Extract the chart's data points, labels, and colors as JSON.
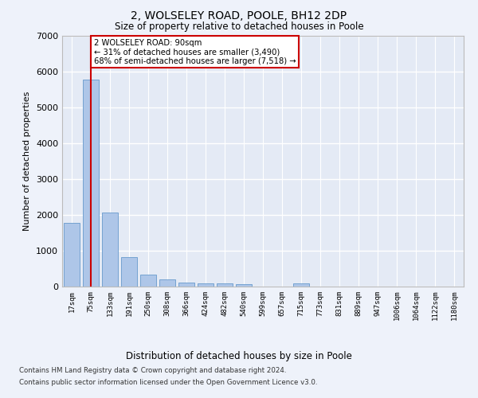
{
  "title1": "2, WOLSELEY ROAD, POOLE, BH12 2DP",
  "title2": "Size of property relative to detached houses in Poole",
  "xlabel": "Distribution of detached houses by size in Poole",
  "ylabel": "Number of detached properties",
  "categories": [
    "17sqm",
    "75sqm",
    "133sqm",
    "191sqm",
    "250sqm",
    "308sqm",
    "366sqm",
    "424sqm",
    "482sqm",
    "540sqm",
    "599sqm",
    "657sqm",
    "715sqm",
    "773sqm",
    "831sqm",
    "889sqm",
    "947sqm",
    "1006sqm",
    "1064sqm",
    "1122sqm",
    "1180sqm"
  ],
  "values": [
    1780,
    5780,
    2060,
    820,
    340,
    190,
    115,
    100,
    90,
    70,
    0,
    0,
    95,
    0,
    0,
    0,
    0,
    0,
    0,
    0,
    0
  ],
  "bar_color": "#aec6e8",
  "bar_edge_color": "#6699cc",
  "highlight_bar_index": 1,
  "highlight_line_color": "#cc0000",
  "ylim": [
    0,
    7000
  ],
  "yticks": [
    0,
    1000,
    2000,
    3000,
    4000,
    5000,
    6000,
    7000
  ],
  "annotation_text": "2 WOLSELEY ROAD: 90sqm\n← 31% of detached houses are smaller (3,490)\n68% of semi-detached houses are larger (7,518) →",
  "annotation_box_color": "#ffffff",
  "annotation_box_edge_color": "#cc0000",
  "footer1": "Contains HM Land Registry data © Crown copyright and database right 2024.",
  "footer2": "Contains public sector information licensed under the Open Government Licence v3.0.",
  "bg_color": "#eef2fa",
  "plot_bg_color": "#e4eaf5",
  "grid_color": "#ffffff"
}
